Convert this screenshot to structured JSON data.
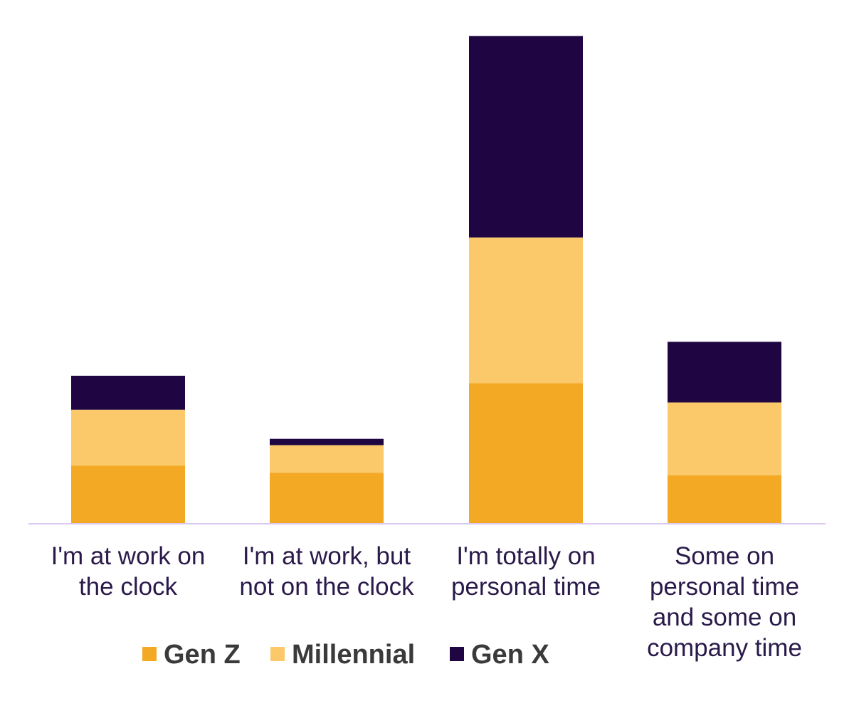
{
  "chart_data": {
    "type": "bar",
    "stacked": true,
    "categories": [
      [
        "I'm at work on",
        "the clock"
      ],
      [
        "I'm at work, but",
        "not on the clock"
      ],
      [
        "I'm totally on",
        "personal time"
      ],
      [
        "Some on",
        "personal time",
        "and some on",
        "company time"
      ]
    ],
    "series": [
      {
        "name": "Gen Z",
        "color": "#f4a924",
        "values": [
          12,
          10.5,
          29,
          10
        ]
      },
      {
        "name": "Millennial",
        "color": "#fbc86a",
        "values": [
          11.5,
          5.7,
          30,
          15
        ]
      },
      {
        "name": "Gen X",
        "color": "#1f0643",
        "values": [
          7,
          1.3,
          41.5,
          12.5
        ]
      }
    ],
    "ylim": [
      0,
      105
    ],
    "grid": false,
    "legend": "bottom",
    "axis_color": "#d9c8ef"
  }
}
